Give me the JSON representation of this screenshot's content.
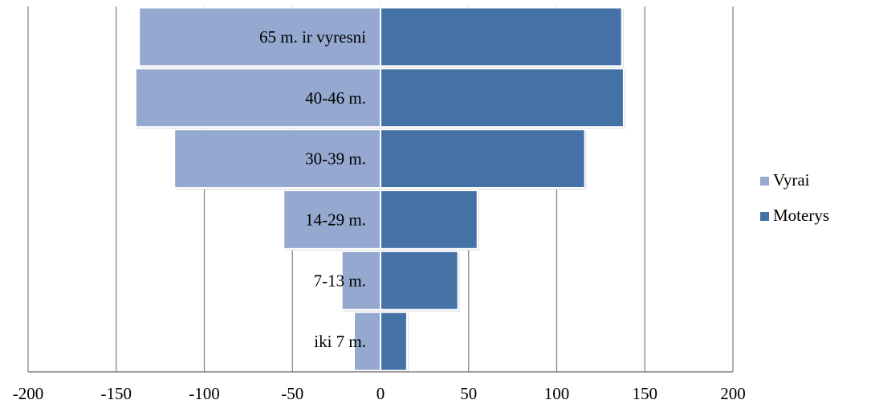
{
  "chart_data": {
    "type": "bar",
    "orientation": "horizontal",
    "layout": "population-pyramid",
    "categories": [
      "iki 7 m.",
      "7-13 m.",
      "14-29 m.",
      "30-39 m.",
      "40-46 m.",
      "65 m. ir vyresni"
    ],
    "series": [
      {
        "name": "Vyrai",
        "values": [
          -15,
          -22,
          -55,
          -117,
          -139,
          -137
        ],
        "color": "#94a8d0"
      },
      {
        "name": "Moterys",
        "values": [
          15,
          44,
          55,
          116,
          138,
          137
        ],
        "color": "#4472a6"
      }
    ],
    "xlim": [
      -200,
      200
    ],
    "xticks": [
      -200,
      -150,
      -100,
      -50,
      0,
      50,
      100,
      150,
      200
    ],
    "grid": "vertical",
    "legend_position": "right",
    "title": "",
    "xlabel": "",
    "ylabel": ""
  }
}
